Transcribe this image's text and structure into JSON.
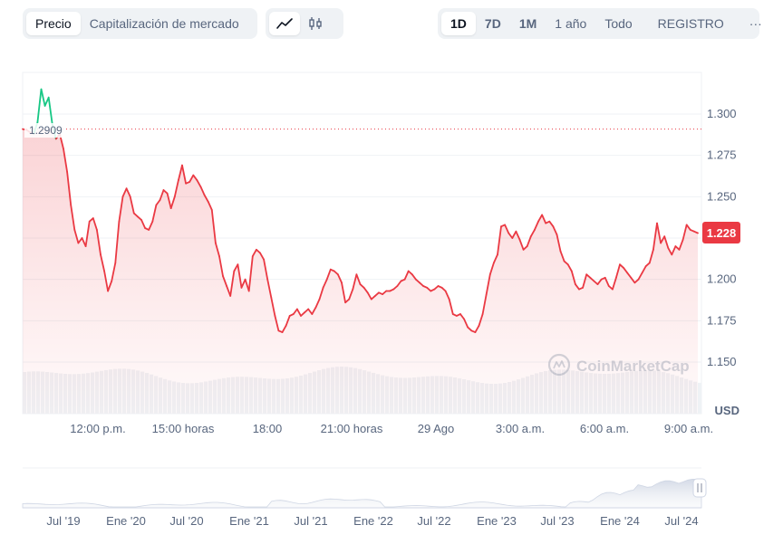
{
  "toolbar": {
    "metric_tabs": [
      "Precio",
      "Capitalización de mercado"
    ],
    "range_tabs": [
      "1D",
      "7D",
      "1M",
      "1 año",
      "Todo"
    ],
    "log_label": "REGISTRO",
    "more_label": "···"
  },
  "chart": {
    "watermark": "CoinMarketCap",
    "currency_label": "USD",
    "open_price_label": "1.2909",
    "current_price_label": "1.228",
    "colors": {
      "down": "#ea3943",
      "up": "#16c784",
      "grid": "#eff2f5"
    }
  },
  "chart_data": [
    {
      "type": "line",
      "y_unit": "USD",
      "ylim": [
        1.14,
        1.32
      ],
      "y_ticks": [
        "1.300",
        "1.275",
        "1.250",
        "1.225",
        "1.200",
        "1.175",
        "1.150"
      ],
      "x_ticks": [
        "12:00 p.m.",
        "15:00 horas",
        "18:00",
        "21:00 horas",
        "29 Ago",
        "3:00 a.m.",
        "6:00 a.m.",
        "9:00 a.m."
      ],
      "open_price": 1.2909,
      "current_price": 1.228,
      "series": [
        {
          "values": [
            1.2909,
            1.2905,
            1.289,
            1.288,
            1.295,
            1.315,
            1.305,
            1.31,
            1.294,
            1.285,
            1.288,
            1.279,
            1.265,
            1.245,
            1.23,
            1.222,
            1.225,
            1.22,
            1.235,
            1.237,
            1.23,
            1.215,
            1.205,
            1.193,
            1.199,
            1.21,
            1.235,
            1.25,
            1.255,
            1.25,
            1.24,
            1.238,
            1.236,
            1.231,
            1.23,
            1.235,
            1.245,
            1.248,
            1.254,
            1.252,
            1.243,
            1.25,
            1.26,
            1.269,
            1.258,
            1.259,
            1.263,
            1.26,
            1.256,
            1.251,
            1.247,
            1.242,
            1.222,
            1.214,
            1.202,
            1.196,
            1.19,
            1.205,
            1.209,
            1.195,
            1.2,
            1.193,
            1.214,
            1.218,
            1.216,
            1.212,
            1.2,
            1.189,
            1.178,
            1.169,
            1.168,
            1.172,
            1.178,
            1.179,
            1.182,
            1.178,
            1.18,
            1.182,
            1.179,
            1.183,
            1.188,
            1.195,
            1.2,
            1.206,
            1.205,
            1.203,
            1.198,
            1.186,
            1.188,
            1.194,
            1.203,
            1.197,
            1.195,
            1.192,
            1.188,
            1.19,
            1.192,
            1.191,
            1.193,
            1.193,
            1.194,
            1.196,
            1.199,
            1.2,
            1.205,
            1.203,
            1.2,
            1.198,
            1.196,
            1.195,
            1.193,
            1.194,
            1.196,
            1.195,
            1.193,
            1.188,
            1.179,
            1.178,
            1.179,
            1.176,
            1.171,
            1.169,
            1.168,
            1.172,
            1.179,
            1.191,
            1.203,
            1.21,
            1.215,
            1.232,
            1.233,
            1.228,
            1.225,
            1.229,
            1.224,
            1.218,
            1.22,
            1.226,
            1.23,
            1.235,
            1.239,
            1.234,
            1.235,
            1.232,
            1.227,
            1.217,
            1.211,
            1.209,
            1.205,
            1.197,
            1.194,
            1.195,
            1.203,
            1.201,
            1.199,
            1.197,
            1.2,
            1.201,
            1.196,
            1.194,
            1.201,
            1.209,
            1.207,
            1.204,
            1.201,
            1.198,
            1.2,
            1.204,
            1.208,
            1.21,
            1.218,
            1.234,
            1.222,
            1.226,
            1.219,
            1.215,
            1.22,
            1.218,
            1.224,
            1.233,
            1.23,
            1.229,
            1.228
          ]
        }
      ]
    },
    {
      "type": "area",
      "x_ticks": [
        "Jul '19",
        "Ene '20",
        "Jul '20",
        "Ene '21",
        "Jul '21",
        "Ene '22",
        "Jul '22",
        "Ene '23",
        "Jul '23",
        "Ene '24",
        "Jul '24"
      ]
    }
  ]
}
